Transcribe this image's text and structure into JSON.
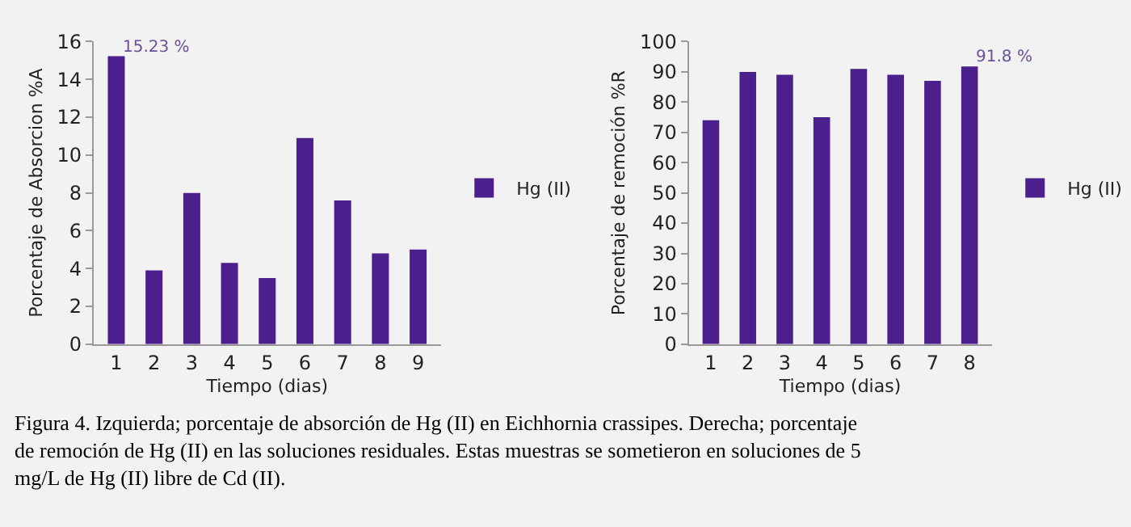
{
  "chart_data": [
    {
      "type": "bar",
      "xlabel": "Tiempo (dias)",
      "ylabel": "Porcentaje de Absorcion %A",
      "categories": [
        "1",
        "2",
        "3",
        "4",
        "5",
        "6",
        "7",
        "8",
        "9"
      ],
      "series": [
        {
          "name": "Hg (II)",
          "color": "#4b1f8c",
          "values": [
            15.23,
            3.9,
            8.0,
            4.3,
            3.5,
            10.9,
            7.6,
            4.8,
            5.0
          ]
        }
      ],
      "ylim": [
        0,
        16
      ],
      "yticks": [
        0,
        2,
        4,
        6,
        8,
        10,
        12,
        14,
        16
      ],
      "grid": false,
      "legend": "right",
      "annotations": [
        {
          "text": "15.23 %",
          "x": "1",
          "y": 15.23
        },
        "Figura 4. Izquierda; porcentaje de absorción de Hg (II) en Eichhornia crassipes. Derecha; porcentaje de remoción de Hg (II) en las soluciones residuales. Estas muestras se sometieron en soluciones de 5 mg/L de Hg (II) libre de Cd (II)."
      ]
    },
    {
      "type": "bar",
      "xlabel": "Tiempo (dias)",
      "ylabel": "Porcentaje de remoción %R",
      "categories": [
        "1",
        "2",
        "3",
        "4",
        "5",
        "6",
        "7",
        "8"
      ],
      "series": [
        {
          "name": "Hg (II)",
          "color": "#4b1f8c",
          "values": [
            74,
            90,
            89,
            75,
            91,
            89,
            87,
            91.8
          ]
        }
      ],
      "ylim": [
        0,
        100
      ],
      "yticks": [
        0,
        10,
        20,
        30,
        40,
        50,
        60,
        70,
        80,
        90,
        100
      ],
      "grid": false,
      "legend": "right",
      "annotations": [
        {
          "text": "91.8 %",
          "x": "8",
          "y": 91.8
        }
      ]
    }
  ]
}
